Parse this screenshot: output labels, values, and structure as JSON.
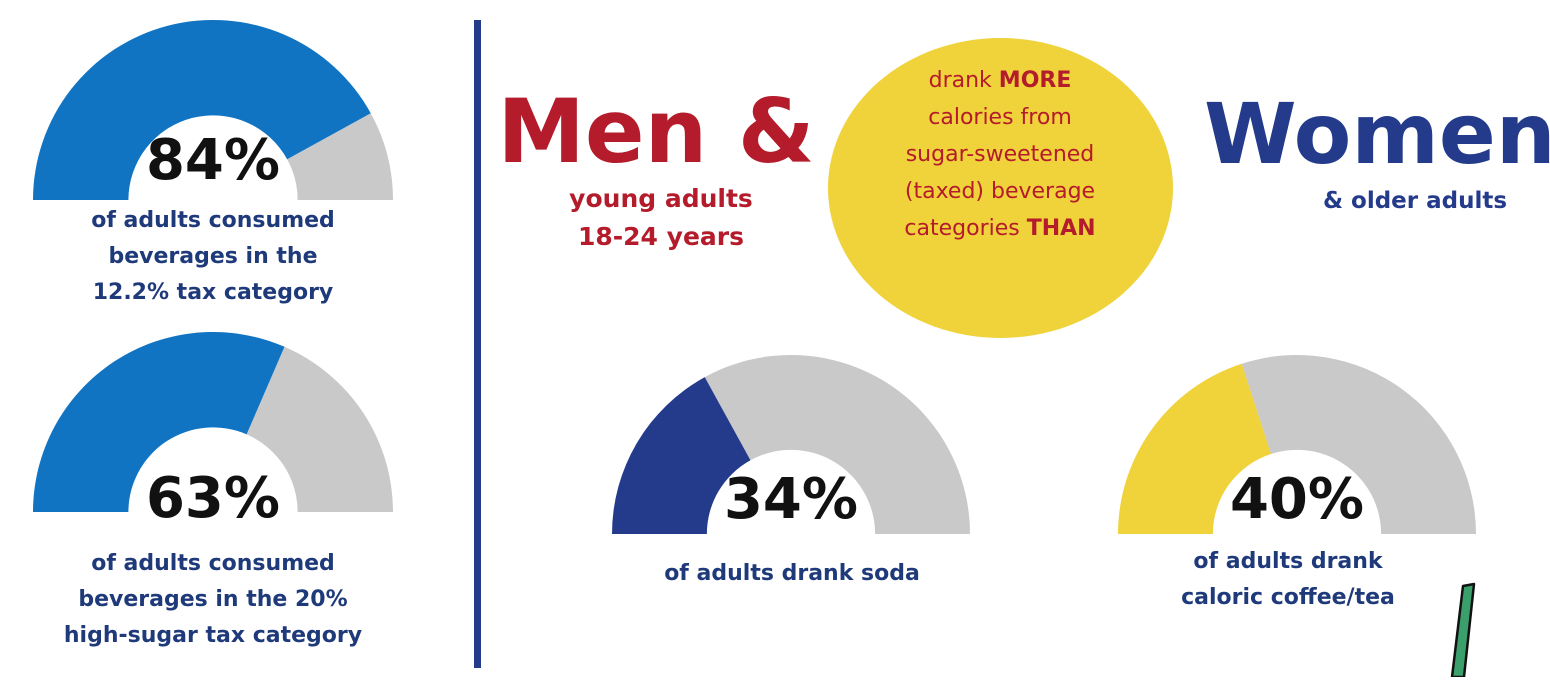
{
  "colors": {
    "blue": "#1174c3",
    "navy": "#243b8c",
    "red": "#b41b2b",
    "yellow": "#f0d23a",
    "gray": "#c8c9c8",
    "green": "#3a9f6b"
  },
  "gauges": {
    "g1": {
      "percent_label": "84%",
      "fraction": 0.84,
      "caption_lines": [
        "of adults consumed",
        "beverages in the",
        "12.2% tax category"
      ],
      "fill_color": "#1174c3"
    },
    "g2": {
      "percent_label": "63%",
      "fraction": 0.63,
      "caption_lines": [
        "of adults consumed",
        "beverages in the 20%",
        "high-sugar tax category"
      ],
      "fill_color": "#1174c3"
    },
    "g3": {
      "percent_label": "34%",
      "fraction": 0.34,
      "caption_lines": [
        "of adults drank soda"
      ],
      "fill_color": "#243b8c"
    },
    "g4": {
      "percent_label": "40%",
      "fraction": 0.4,
      "caption_lines": [
        "of adults drank",
        "caloric coffee/tea"
      ],
      "fill_color": "#f0d23a"
    }
  },
  "comparison": {
    "men_title": "Men &",
    "men_sub_lines": [
      "young adults",
      "18-24 years"
    ],
    "women_title": "Women",
    "women_sub": "& older adults",
    "circle": {
      "line1_a": "drank ",
      "line1_b": "MORE",
      "line2": "calories from",
      "line3": "sugar-sweetened",
      "line4": "(taxed) beverage",
      "line5_a": "categories ",
      "line5_b": "THAN"
    }
  },
  "icons": {
    "straw": "straw-icon"
  }
}
